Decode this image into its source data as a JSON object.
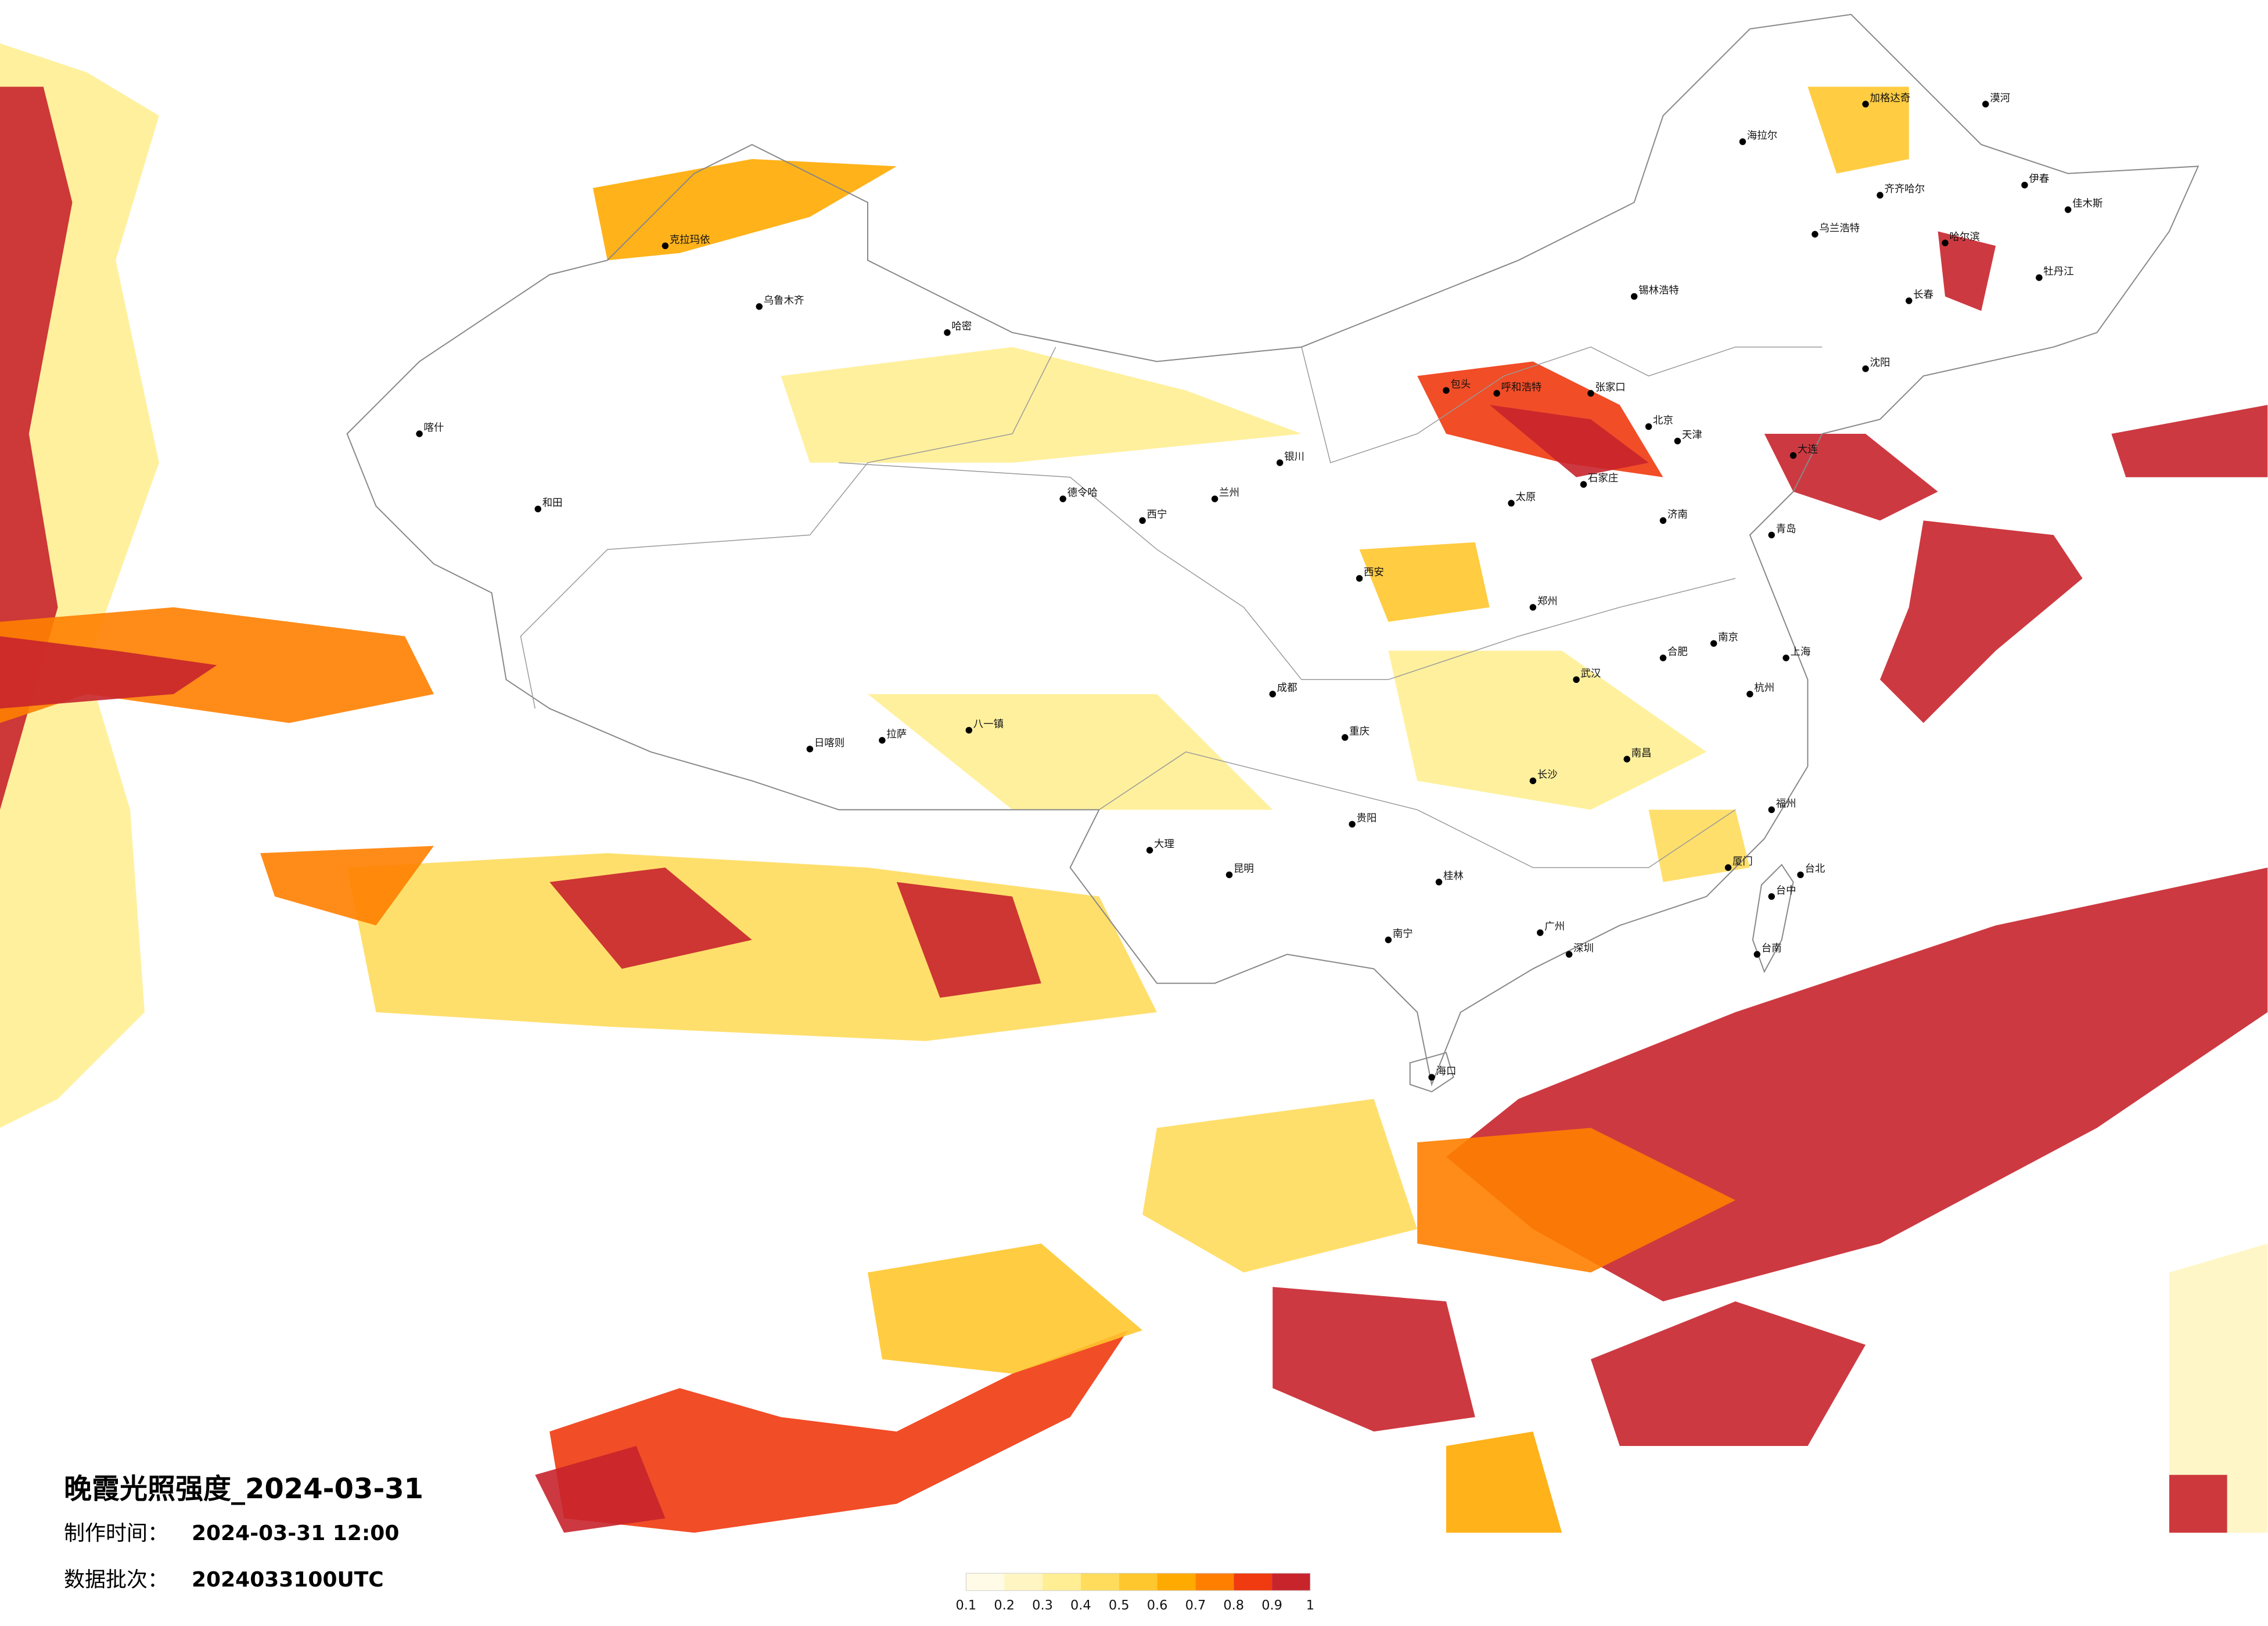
{
  "title": "晚霞光照强度_2024-03-31",
  "made_label": "制作时间：",
  "made_time": "2024-03-31 12:00",
  "batch_label": "数据批次：",
  "batch": "2024033100UTC",
  "legend": {
    "ticks": [
      0.1,
      0.2,
      0.3,
      0.4,
      0.5,
      0.6,
      0.7,
      0.8,
      0.9,
      1
    ],
    "colors": [
      "#fffbe6",
      "#fff5c2",
      "#ffee94",
      "#ffdc5c",
      "#ffc72e",
      "#ffaa00",
      "#ff7f00",
      "#f03a10",
      "#c8242c"
    ]
  },
  "cities": [
    {
      "name": "漠河"
    },
    {
      "name": "海拉尔"
    },
    {
      "name": "加格达奇"
    },
    {
      "name": "齐齐哈尔"
    },
    {
      "name": "哈尔滨"
    },
    {
      "name": "伊春"
    },
    {
      "name": "佳木斯"
    },
    {
      "name": "牡丹江"
    },
    {
      "name": "长春"
    },
    {
      "name": "乌兰浩特"
    },
    {
      "name": "锡林浩特"
    },
    {
      "name": "呼和浩特"
    },
    {
      "name": "包头"
    },
    {
      "name": "张家口"
    },
    {
      "name": "沈阳"
    },
    {
      "name": "大连"
    },
    {
      "name": "石家庄"
    },
    {
      "name": "天津"
    },
    {
      "name": "北京"
    },
    {
      "name": "济南"
    },
    {
      "name": "青岛"
    },
    {
      "name": "太原"
    },
    {
      "name": "郑州"
    },
    {
      "name": "西安"
    },
    {
      "name": "兰州"
    },
    {
      "name": "西宁"
    },
    {
      "name": "银川"
    },
    {
      "name": "乌鲁木齐"
    },
    {
      "name": "克拉玛依"
    },
    {
      "name": "喀什"
    },
    {
      "name": "和田"
    },
    {
      "name": "拉萨"
    },
    {
      "name": "日喀则"
    },
    {
      "name": "八一镇"
    },
    {
      "name": "德令哈"
    },
    {
      "name": "成都"
    },
    {
      "name": "重庆"
    },
    {
      "name": "贵阳"
    },
    {
      "name": "昆明"
    },
    {
      "name": "南宁"
    },
    {
      "name": "广州"
    },
    {
      "name": "深圳"
    },
    {
      "name": "海口"
    },
    {
      "name": "长沙"
    },
    {
      "name": "武汉"
    },
    {
      "name": "南昌"
    },
    {
      "name": "杭州"
    },
    {
      "name": "上海"
    },
    {
      "name": "南京"
    },
    {
      "name": "合肥"
    },
    {
      "name": "福州"
    },
    {
      "name": "厦门"
    },
    {
      "name": "台北"
    },
    {
      "name": "台中"
    },
    {
      "name": "台南"
    },
    {
      "name": "桂林"
    },
    {
      "name": "大理"
    },
    {
      "name": "哈密"
    }
  ]
}
